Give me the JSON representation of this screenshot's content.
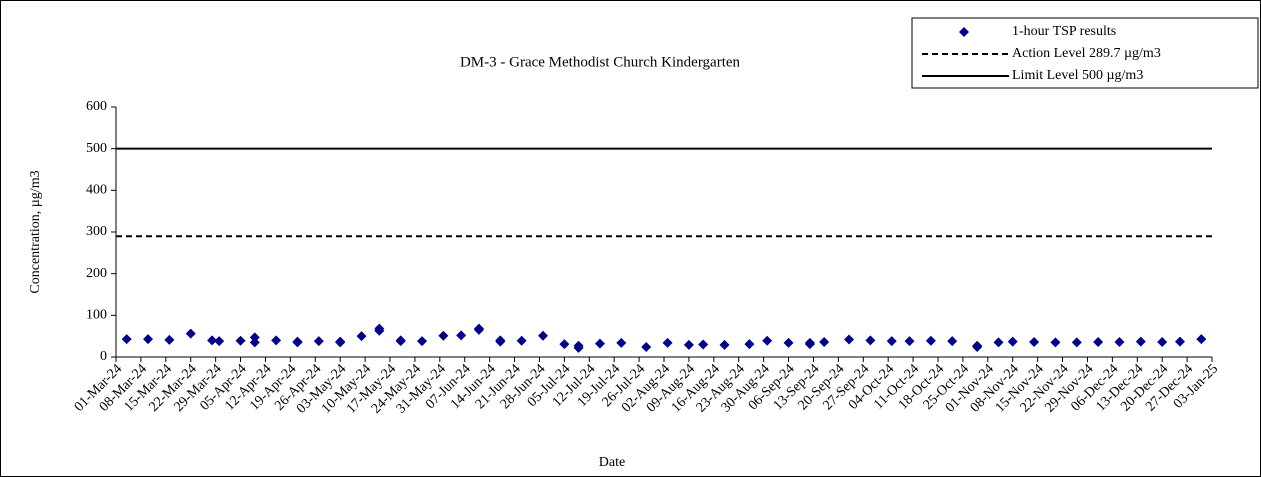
{
  "chart_data": {
    "type": "scatter",
    "title": "DM-3 - Grace Methodist Church Kindergarten",
    "x_label": "Date",
    "y_label": "Concentration, µg/m3",
    "xlim": [
      "2024-03-01",
      "2025-01-03"
    ],
    "xticks": [
      {
        "value": "2024-03-01",
        "label": "01-Mar-24"
      },
      {
        "value": "2024-03-08",
        "label": "08-Mar-24"
      },
      {
        "value": "2024-03-15",
        "label": "15-Mar-24"
      },
      {
        "value": "2024-03-22",
        "label": "22-Mar-24"
      },
      {
        "value": "2024-03-29",
        "label": "29-Mar-24"
      },
      {
        "value": "2024-04-05",
        "label": "05-Apr-24"
      },
      {
        "value": "2024-04-12",
        "label": "12-Apr-24"
      },
      {
        "value": "2024-04-19",
        "label": "19-Apr-24"
      },
      {
        "value": "2024-04-26",
        "label": "26-Apr-24"
      },
      {
        "value": "2024-05-03",
        "label": "03-May-24"
      },
      {
        "value": "2024-05-10",
        "label": "10-May-24"
      },
      {
        "value": "2024-05-17",
        "label": "17-May-24"
      },
      {
        "value": "2024-05-24",
        "label": "24-May-24"
      },
      {
        "value": "2024-05-31",
        "label": "31-May-24"
      },
      {
        "value": "2024-06-07",
        "label": "07-Jun-24"
      },
      {
        "value": "2024-06-14",
        "label": "14-Jun-24"
      },
      {
        "value": "2024-06-21",
        "label": "21-Jun-24"
      },
      {
        "value": "2024-06-28",
        "label": "28-Jun-24"
      },
      {
        "value": "2024-07-05",
        "label": "05-Jul-24"
      },
      {
        "value": "2024-07-12",
        "label": "12-Jul-24"
      },
      {
        "value": "2024-07-19",
        "label": "19-Jul-24"
      },
      {
        "value": "2024-07-26",
        "label": "26-Jul-24"
      },
      {
        "value": "2024-08-02",
        "label": "02-Aug-24"
      },
      {
        "value": "2024-08-09",
        "label": "09-Aug-24"
      },
      {
        "value": "2024-08-16",
        "label": "16-Aug-24"
      },
      {
        "value": "2024-08-23",
        "label": "23-Aug-24"
      },
      {
        "value": "2024-08-30",
        "label": "30-Aug-24"
      },
      {
        "value": "2024-09-06",
        "label": "06-Sep-24"
      },
      {
        "value": "2024-09-13",
        "label": "13-Sep-24"
      },
      {
        "value": "2024-09-20",
        "label": "20-Sep-24"
      },
      {
        "value": "2024-09-27",
        "label": "27-Sep-24"
      },
      {
        "value": "2024-10-04",
        "label": "04-Oct-24"
      },
      {
        "value": "2024-10-11",
        "label": "11-Oct-24"
      },
      {
        "value": "2024-10-18",
        "label": "18-Oct-24"
      },
      {
        "value": "2024-10-25",
        "label": "25-Oct-24"
      },
      {
        "value": "2024-11-01",
        "label": "01-Nov-24"
      },
      {
        "value": "2024-11-08",
        "label": "08-Nov-24"
      },
      {
        "value": "2024-11-15",
        "label": "15-Nov-24"
      },
      {
        "value": "2024-11-22",
        "label": "22-Nov-24"
      },
      {
        "value": "2024-11-29",
        "label": "29-Nov-24"
      },
      {
        "value": "2024-12-06",
        "label": "06-Dec-24"
      },
      {
        "value": "2024-12-13",
        "label": "13-Dec-24"
      },
      {
        "value": "2024-12-20",
        "label": "20-Dec-24"
      },
      {
        "value": "2024-12-27",
        "label": "27-Dec-24"
      },
      {
        "value": "2025-01-03",
        "label": "03-Jan-25"
      }
    ],
    "ylim": [
      0,
      600
    ],
    "yticks": [
      0,
      100,
      200,
      300,
      400,
      500,
      600
    ],
    "legend": "top-right",
    "series": [
      {
        "name": "1-hour TSP results",
        "color": "#00008b",
        "x": [
          "2024-03-04",
          "2024-03-10",
          "2024-03-16",
          "2024-03-22",
          "2024-03-28",
          "2024-03-30",
          "2024-04-05",
          "2024-04-09",
          "2024-04-09",
          "2024-04-15",
          "2024-04-21",
          "2024-04-21",
          "2024-04-27",
          "2024-05-03",
          "2024-05-03",
          "2024-05-09",
          "2024-05-14",
          "2024-05-14",
          "2024-05-20",
          "2024-05-20",
          "2024-05-26",
          "2024-06-01",
          "2024-06-06",
          "2024-06-11",
          "2024-06-11",
          "2024-06-17",
          "2024-06-17",
          "2024-06-23",
          "2024-06-29",
          "2024-07-05",
          "2024-07-09",
          "2024-07-09",
          "2024-07-15",
          "2024-07-21",
          "2024-07-28",
          "2024-08-03",
          "2024-08-09",
          "2024-08-13",
          "2024-08-19",
          "2024-08-26",
          "2024-08-31",
          "2024-09-06",
          "2024-09-12",
          "2024-09-12",
          "2024-09-16",
          "2024-09-23",
          "2024-09-29",
          "2024-10-05",
          "2024-10-10",
          "2024-10-16",
          "2024-10-22",
          "2024-10-29",
          "2024-10-29",
          "2024-11-04",
          "2024-11-08",
          "2024-11-14",
          "2024-11-20",
          "2024-11-26",
          "2024-12-02",
          "2024-12-08",
          "2024-12-14",
          "2024-12-20",
          "2024-12-25",
          "2024-12-31"
        ],
        "values": [
          43,
          43,
          41,
          56,
          40,
          38,
          39,
          47,
          35,
          40,
          35,
          37,
          38,
          35,
          37,
          50,
          68,
          63,
          38,
          40,
          38,
          51,
          52,
          65,
          68,
          40,
          37,
          39,
          51,
          31,
          27,
          22,
          32,
          34,
          24,
          34,
          29,
          30,
          29,
          31,
          39,
          34,
          34,
          31,
          36,
          42,
          40,
          38,
          38,
          39,
          38,
          27,
          24,
          35,
          37,
          36,
          35,
          35,
          36,
          36,
          37,
          36,
          37,
          43
        ]
      }
    ],
    "reference_lines": [
      {
        "name": "Action Level 289.7 µg/m3",
        "value": 289.7,
        "style": "dashed",
        "color": "#000000"
      },
      {
        "name": "Limit Level 500 µg/m3",
        "value": 500,
        "style": "solid",
        "color": "#000000"
      }
    ]
  }
}
